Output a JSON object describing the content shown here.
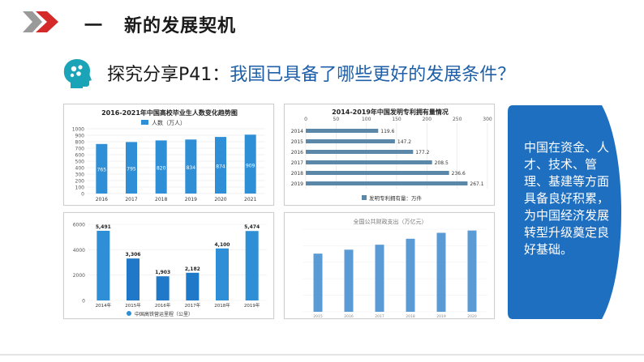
{
  "section": {
    "number": "一",
    "title": "新的发展契机"
  },
  "question": {
    "prefix": "探究分享P41：",
    "body": "我国已具备了哪些更好的发展条件？"
  },
  "callout": {
    "text": "中国在资金、人才、技术、管理、基建等方面具备良好积累，为中国经济发展转型升级奠定良好基础。"
  },
  "colors": {
    "accent_red": "#d42a2a",
    "blue_dark": "#1f5fa8",
    "bar_blue": "#2e8fd6",
    "bar_steel": "#5b87a8",
    "bar_light": "#5b9bd5",
    "callout_bg": "#1f6fc0"
  },
  "chart_data": [
    {
      "type": "bar",
      "title": "2016-2021年中国高校毕业生人数变化趋势图",
      "legend": "人数（万人）",
      "categories": [
        "2016",
        "2017",
        "2018",
        "2019",
        "2020",
        "2021"
      ],
      "values": [
        765,
        795,
        820,
        834,
        874,
        909
      ],
      "yticks": [
        "1000",
        "900",
        "800",
        "700",
        "600",
        "500",
        "400",
        "300",
        "200",
        "100",
        "0"
      ],
      "ylim": [
        0,
        1000
      ]
    },
    {
      "type": "bar",
      "orientation": "horizontal",
      "title": "2014-2019年中国发明专利拥有量情况",
      "legend": "发明专利拥有量：万件",
      "categories": [
        "2014",
        "2015",
        "2016",
        "2017",
        "2018",
        "2019"
      ],
      "values": [
        119.6,
        147.2,
        177.2,
        208.5,
        236.6,
        267.1
      ],
      "xticks": [
        "0",
        "50",
        "100",
        "150",
        "200",
        "250",
        "300"
      ],
      "xlim": [
        0,
        300
      ]
    },
    {
      "type": "bar",
      "legend": "中国高铁营运里程（公里）",
      "categories": [
        "2014年",
        "2015年",
        "2016年",
        "2017年",
        "2018年",
        "2019年"
      ],
      "values": [
        5491,
        3306,
        1903,
        2182,
        4100,
        5474
      ],
      "value_labels": [
        "5,491",
        "3,306",
        "1,903",
        "2,182",
        "4,100",
        "5,474"
      ],
      "highlight": [
        0,
        4,
        5
      ],
      "yticks": [
        "6000",
        "4000",
        "2000",
        "0"
      ],
      "ylim": [
        0,
        6000
      ]
    },
    {
      "type": "bar",
      "title": "全国公共财政支出（万亿元）",
      "categories": [
        "2015",
        "2016",
        "2017",
        "2018",
        "2019",
        "2020"
      ],
      "values": [
        17.6,
        18.8,
        20.3,
        22.1,
        23.9,
        24.6
      ],
      "ylim": [
        0,
        25
      ]
    }
  ]
}
